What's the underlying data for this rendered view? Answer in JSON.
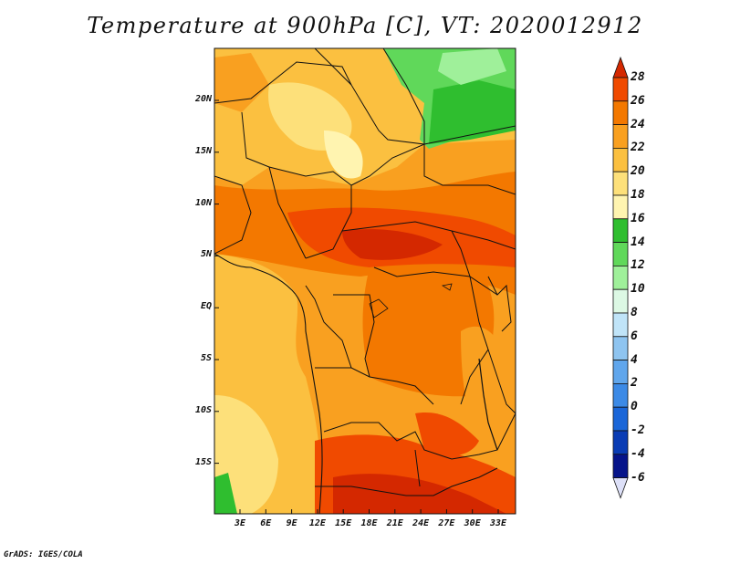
{
  "title": "Temperature at 900hPa [C], VT: 2020012912",
  "credit": "GrADS: IGES/COLA",
  "x_ticks": [
    "3E",
    "6E",
    "9E",
    "12E",
    "15E",
    "18E",
    "21E",
    "24E",
    "27E",
    "30E",
    "33E"
  ],
  "y_ticks": [
    "20N",
    "15N",
    "10N",
    "5N",
    "EQ",
    "5S",
    "10S",
    "15S"
  ],
  "colorbar": {
    "levels": [
      "28",
      "26",
      "24",
      "22",
      "20",
      "18",
      "16",
      "14",
      "12",
      "10",
      "8",
      "6",
      "4",
      "2",
      "0",
      "-2",
      "-4",
      "-6"
    ],
    "colors": [
      "#d42800",
      "#f04a00",
      "#f37800",
      "#f9a020",
      "#fbc040",
      "#fde07a",
      "#fff4b0",
      "#2fbe2f",
      "#60d85a",
      "#9ff09a",
      "#dcf8e4",
      "#c0e4f8",
      "#8ec4f0",
      "#60a6ec",
      "#3c8ae6",
      "#1a66d8",
      "#0a3cb4",
      "#06148a",
      "#dde0f8"
    ]
  },
  "map": {
    "region": "Central and Southern Africa",
    "lon_range": [
      0,
      35
    ],
    "lat_range": [
      -20,
      24
    ],
    "colors": {
      "c28": "#d42800",
      "c26": "#f04a00",
      "c24": "#f37800",
      "c22": "#f9a020",
      "c20": "#fbc040",
      "c18": "#fde07a",
      "c16": "#fff4b0",
      "c14": "#2fbe2f",
      "c12": "#60d85a",
      "c10": "#9ff09a"
    }
  }
}
